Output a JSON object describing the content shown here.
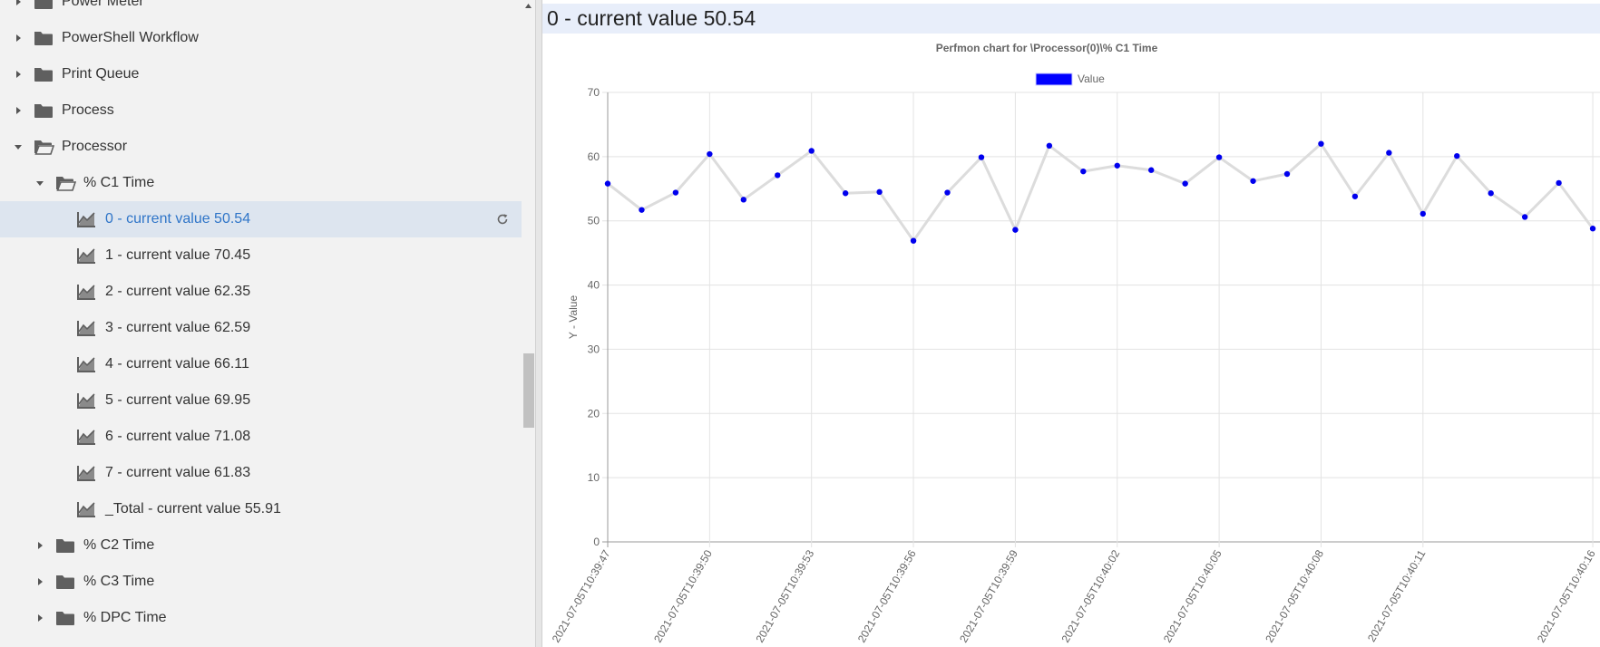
{
  "tree": {
    "items": [
      {
        "label": "Power Meter",
        "indent": 0,
        "expanded": false,
        "icon": "folder-icon",
        "top": -18
      },
      {
        "label": "PowerShell Workflow",
        "indent": 0,
        "expanded": false,
        "icon": "folder-icon"
      },
      {
        "label": "Print Queue",
        "indent": 0,
        "expanded": false,
        "icon": "folder-icon"
      },
      {
        "label": "Process",
        "indent": 0,
        "expanded": false,
        "icon": "folder-icon"
      },
      {
        "label": "Processor",
        "indent": 0,
        "expanded": true,
        "icon": "folder-open-icon"
      },
      {
        "label": "% C1 Time",
        "indent": 1,
        "expanded": true,
        "icon": "folder-open-icon"
      },
      {
        "label": "0 - current value 50.54",
        "indent": 2,
        "leaf": true,
        "selected": true,
        "icon": "chart-area-icon"
      },
      {
        "label": "1 - current value 70.45",
        "indent": 2,
        "leaf": true,
        "icon": "chart-area-icon"
      },
      {
        "label": "2 - current value 62.35",
        "indent": 2,
        "leaf": true,
        "icon": "chart-area-icon"
      },
      {
        "label": "3 - current value 62.59",
        "indent": 2,
        "leaf": true,
        "icon": "chart-area-icon"
      },
      {
        "label": "4 - current value 66.11",
        "indent": 2,
        "leaf": true,
        "icon": "chart-area-icon"
      },
      {
        "label": "5 - current value 69.95",
        "indent": 2,
        "leaf": true,
        "icon": "chart-area-icon"
      },
      {
        "label": "6 - current value 71.08",
        "indent": 2,
        "leaf": true,
        "icon": "chart-area-icon"
      },
      {
        "label": "7 - current value 61.83",
        "indent": 2,
        "leaf": true,
        "icon": "chart-area-icon"
      },
      {
        "label": "_Total - current value 55.91",
        "indent": 2,
        "leaf": true,
        "icon": "chart-area-icon"
      },
      {
        "label": "% C2 Time",
        "indent": 1,
        "expanded": false,
        "icon": "folder-icon"
      },
      {
        "label": "% C3 Time",
        "indent": 1,
        "expanded": false,
        "icon": "folder-icon"
      },
      {
        "label": "% DPC Time",
        "indent": 1,
        "expanded": false,
        "icon": "folder-icon"
      }
    ]
  },
  "header": {
    "title": "0 - current value 50.54"
  },
  "colors": {
    "accent": "#2f75c8",
    "selected_bg": "#dde5ef",
    "header_bg": "#e8eefa",
    "point": "#0000ee",
    "line": "#dcdcdc",
    "legend": "#0000ff"
  },
  "chart_data": {
    "type": "line",
    "title": "Perfmon chart for \\Processor(0)\\% C1 Time",
    "legend": [
      "Value"
    ],
    "legend_position": "top",
    "ylabel": "Y - Value",
    "xlabel": "",
    "ylim": [
      0,
      70
    ],
    "yticks": [
      0,
      10,
      20,
      30,
      40,
      50,
      60,
      70
    ],
    "grid": true,
    "xtick_labels": [
      "2021-07-05T10:39:47",
      "2021-07-05T10:39:50",
      "2021-07-05T10:39:53",
      "2021-07-05T10:39:56",
      "2021-07-05T10:39:59",
      "2021-07-05T10:40:02",
      "2021-07-05T10:40:05",
      "2021-07-05T10:40:08",
      "2021-07-05T10:40:11",
      "2021-07-05T10:40:16"
    ],
    "series": [
      {
        "name": "Value",
        "values": [
          55.8,
          51.7,
          54.4,
          60.4,
          53.3,
          57.1,
          60.9,
          54.3,
          54.5,
          46.9,
          54.4,
          59.9,
          48.6,
          61.7,
          57.7,
          58.6,
          57.9,
          55.8,
          59.9,
          56.2,
          57.3,
          62.0,
          53.8,
          60.6,
          51.1,
          60.1,
          54.3,
          50.6,
          55.9,
          48.8
        ]
      }
    ]
  }
}
